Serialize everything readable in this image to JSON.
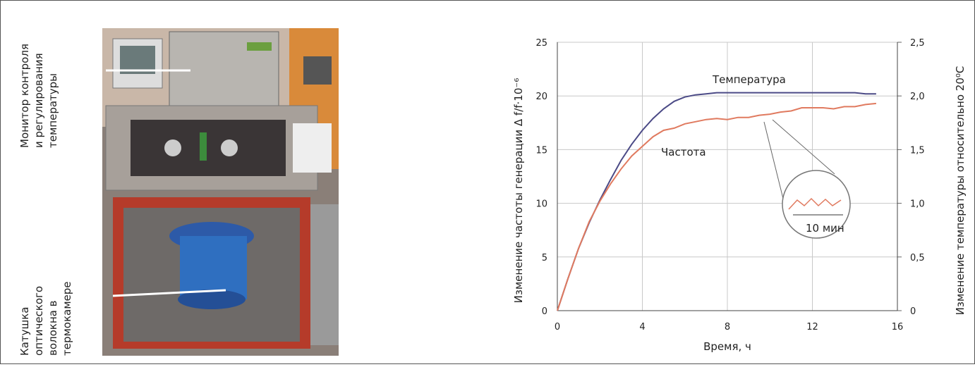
{
  "photo": {
    "labels": [
      {
        "lines": [
          "Монитор контроля",
          "и регулирования",
          "температуры"
        ]
      },
      {
        "lines": [
          "Катушка",
          "оптического",
          "волокна в",
          "термокамере"
        ]
      }
    ]
  },
  "chart_data": {
    "type": "line",
    "xlabel": "Время, ч",
    "ylabel": "Изменение частоты генерации Δ f/f·10⁻⁶",
    "y2label": "Изменение температуры относительно 20⁰C",
    "annotations": [
      "Температура",
      "Частота",
      "10 мин"
    ],
    "x": [
      0,
      0.5,
      1,
      1.5,
      2,
      2.5,
      3,
      3.5,
      4,
      4.5,
      5,
      5.5,
      6,
      6.5,
      7,
      7.5,
      8,
      8.5,
      9,
      9.5,
      10,
      10.5,
      11,
      11.5,
      12,
      12.5,
      13,
      13.5,
      14,
      14.5,
      15
    ],
    "series": [
      {
        "name": "Температура",
        "color": "#4b4a86",
        "axis": "y2",
        "values": [
          0,
          0.3,
          0.58,
          0.82,
          1.03,
          1.22,
          1.4,
          1.55,
          1.68,
          1.79,
          1.88,
          1.95,
          1.99,
          2.01,
          2.02,
          2.03,
          2.03,
          2.03,
          2.03,
          2.03,
          2.03,
          2.03,
          2.03,
          2.03,
          2.03,
          2.03,
          2.03,
          2.03,
          2.03,
          2.02,
          2.02
        ]
      },
      {
        "name": "Частота",
        "color": "#e07a5f",
        "values": [
          0,
          3,
          5.8,
          8.3,
          10.2,
          11.8,
          13.2,
          14.4,
          15.3,
          16.2,
          16.8,
          17.0,
          17.4,
          17.6,
          17.8,
          17.9,
          17.8,
          18.0,
          18.0,
          18.2,
          18.3,
          18.5,
          18.6,
          18.9,
          18.9,
          18.9,
          18.8,
          19.0,
          19.0,
          19.2,
          19.3
        ]
      }
    ],
    "xlim": [
      0,
      16
    ],
    "xticks": [
      0,
      4,
      8,
      12,
      16
    ],
    "ylim": [
      0,
      25
    ],
    "yticks": [
      0,
      5,
      10,
      15,
      20,
      25
    ],
    "y2lim": [
      0,
      2.5
    ],
    "y2ticks": [
      0,
      {
        "value": 0.5,
        "label": "0,5"
      },
      {
        "value": 1,
        "label": "1,0"
      },
      {
        "value": 1.5,
        "label": "1,5"
      },
      {
        "value": 2,
        "label": "2,0"
      },
      {
        "value": 2.5,
        "label": "2,5"
      }
    ],
    "grid": true
  }
}
